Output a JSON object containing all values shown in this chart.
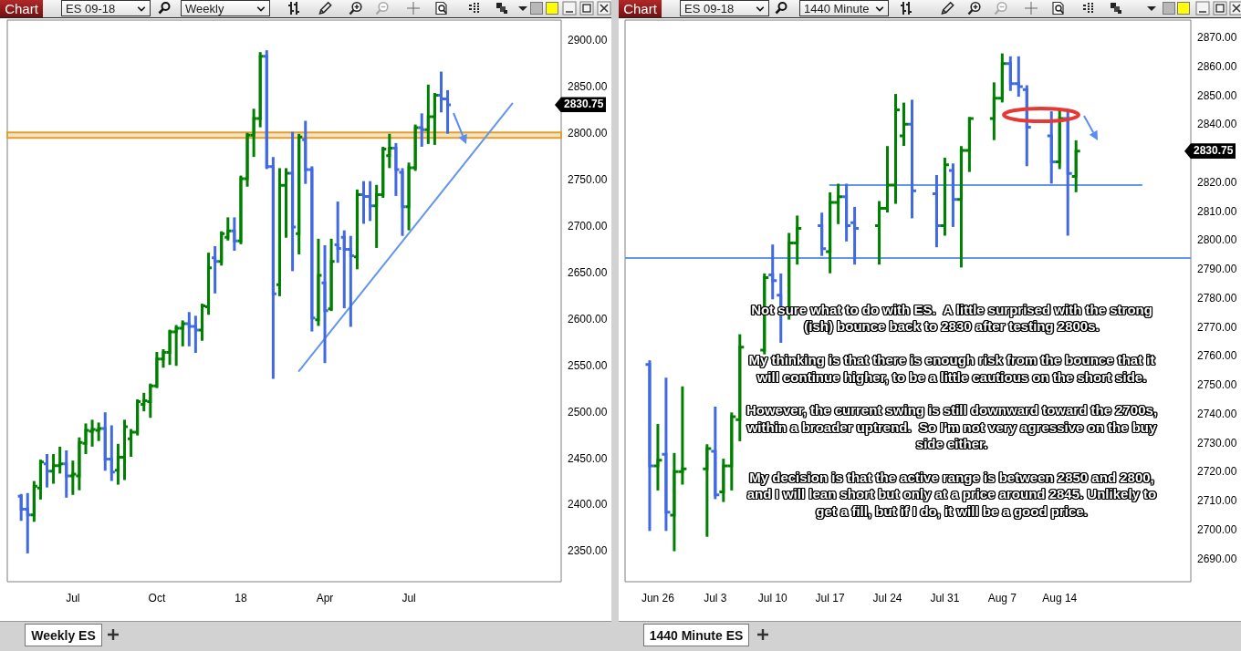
{
  "chart_data": [
    {
      "type": "candlestick",
      "title": "Weekly ES",
      "subtitle": "Weekly",
      "annotations": [
        "Chart",
        "ES 09-18",
        "2830.75"
      ],
      "x": [
        "2017-05-08",
        "2017-05-15",
        "2017-05-22",
        "2017-05-29",
        "2017-06-05",
        "2017-06-12",
        "2017-06-19",
        "2017-06-26",
        "2017-07-03",
        "2017-07-10",
        "2017-07-17",
        "2017-07-24",
        "2017-07-31",
        "2017-08-07",
        "2017-08-14",
        "2017-08-21",
        "2017-08-28",
        "2017-09-04",
        "2017-09-11",
        "2017-09-18",
        "2017-09-25",
        "2017-10-02",
        "2017-10-09",
        "2017-10-16",
        "2017-10-23",
        "2017-10-30",
        "2017-11-06",
        "2017-11-13",
        "2017-11-20",
        "2017-11-27",
        "2017-12-04",
        "2017-12-11",
        "2017-12-18",
        "2017-12-25",
        "2018-01-01",
        "2018-01-08",
        "2018-01-15",
        "2018-01-22",
        "2018-01-29",
        "2018-02-05",
        "2018-02-12",
        "2018-02-19",
        "2018-02-26",
        "2018-03-05",
        "2018-03-12",
        "2018-03-19",
        "2018-03-26",
        "2018-04-02",
        "2018-04-09",
        "2018-04-16",
        "2018-04-23",
        "2018-04-30",
        "2018-05-07",
        "2018-05-14",
        "2018-05-21",
        "2018-05-28",
        "2018-06-04",
        "2018-06-11",
        "2018-06-18",
        "2018-06-25",
        "2018-07-02",
        "2018-07-09",
        "2018-07-16",
        "2018-07-23",
        "2018-07-30",
        "2018-08-06",
        "2018-08-13"
      ],
      "ohlc": [
        [
          2409,
          2410,
          2384,
          2395
        ],
        [
          2395,
          2411,
          2349,
          2389
        ],
        [
          2389,
          2424,
          2383,
          2420
        ],
        [
          2418,
          2447,
          2407,
          2446
        ],
        [
          2444,
          2453,
          2420,
          2436
        ],
        [
          2436,
          2453,
          2424,
          2442
        ],
        [
          2442,
          2461,
          2435,
          2444
        ],
        [
          2444,
          2457,
          2409,
          2431
        ],
        [
          2431,
          2446,
          2412,
          2433
        ],
        [
          2431,
          2471,
          2417,
          2467
        ],
        [
          2466,
          2486,
          2456,
          2480
        ],
        [
          2479,
          2490,
          2464,
          2481
        ],
        [
          2480,
          2487,
          2470,
          2482
        ],
        [
          2482,
          2498,
          2438,
          2449
        ],
        [
          2449,
          2484,
          2427,
          2435
        ],
        [
          2437,
          2464,
          2423,
          2451
        ],
        [
          2451,
          2490,
          2428,
          2484
        ],
        [
          2471,
          2480,
          2453,
          2478
        ],
        [
          2478,
          2512,
          2476,
          2511
        ],
        [
          2508,
          2519,
          2502,
          2512
        ],
        [
          2511,
          2529,
          2495,
          2528
        ],
        [
          2528,
          2563,
          2527,
          2557
        ],
        [
          2557,
          2566,
          2549,
          2564
        ],
        [
          2564,
          2587,
          2552,
          2586
        ],
        [
          2586,
          2592,
          2551,
          2590
        ],
        [
          2590,
          2597,
          2572,
          2595
        ],
        [
          2595,
          2606,
          2572,
          2592
        ],
        [
          2592,
          2602,
          2565,
          2588
        ],
        [
          2588,
          2615,
          2578,
          2614
        ],
        [
          2613,
          2670,
          2606,
          2655
        ],
        [
          2666,
          2677,
          2629,
          2662
        ],
        [
          2662,
          2693,
          2659,
          2692
        ],
        [
          2688,
          2708,
          2686,
          2695
        ],
        [
          2695,
          2708,
          2675,
          2684
        ],
        [
          2684,
          2753,
          2682,
          2751
        ],
        [
          2751,
          2799,
          2744,
          2798
        ],
        [
          2798,
          2825,
          2776,
          2816
        ],
        [
          2816,
          2886,
          2808,
          2883
        ],
        [
          2883,
          2888,
          2763,
          2764
        ],
        [
          2764,
          2773,
          2537,
          2627
        ],
        [
          2637,
          2761,
          2626,
          2744
        ],
        [
          2744,
          2761,
          2689,
          2757
        ],
        [
          2757,
          2800,
          2653,
          2699
        ],
        [
          2692,
          2798,
          2671,
          2796
        ],
        [
          2793,
          2812,
          2747,
          2761
        ],
        [
          2761,
          2763,
          2588,
          2601
        ],
        [
          2599,
          2685,
          2594,
          2647
        ],
        [
          2639,
          2678,
          2554,
          2609
        ],
        [
          2611,
          2685,
          2610,
          2662
        ],
        [
          2680,
          2725,
          2662,
          2676
        ],
        [
          2688,
          2694,
          2613,
          2675
        ],
        [
          2675,
          2688,
          2593,
          2668
        ],
        [
          2667,
          2738,
          2655,
          2734
        ],
        [
          2734,
          2747,
          2704,
          2732
        ],
        [
          2732,
          2747,
          2707,
          2722
        ],
        [
          2722,
          2743,
          2678,
          2734
        ],
        [
          2734,
          2784,
          2732,
          2783
        ],
        [
          2776,
          2798,
          2764,
          2784
        ],
        [
          2784,
          2788,
          2734,
          2761
        ],
        [
          2758,
          2761,
          2691,
          2721
        ],
        [
          2721,
          2767,
          2697,
          2763
        ],
        [
          2763,
          2808,
          2761,
          2806
        ],
        [
          2806,
          2820,
          2787,
          2804
        ],
        [
          2804,
          2851,
          2790,
          2818
        ],
        [
          2818,
          2842,
          2789,
          2841
        ],
        [
          2841,
          2865,
          2824,
          2837
        ],
        [
          2837,
          2845,
          2801,
          2830.75
        ]
      ],
      "colors": [
        "#4169e1",
        "#4169e1",
        "#008000",
        "#008000",
        "#4169e1",
        "#008000",
        "#008000",
        "#4169e1",
        "#008000",
        "#008000",
        "#008000",
        "#008000",
        "#008000",
        "#4169e1",
        "#4169e1",
        "#008000",
        "#008000",
        "#008000",
        "#008000",
        "#008000",
        "#008000",
        "#008000",
        "#008000",
        "#008000",
        "#008000",
        "#008000",
        "#4169e1",
        "#4169e1",
        "#008000",
        "#008000",
        "#4169e1",
        "#008000",
        "#008000",
        "#4169e1",
        "#008000",
        "#008000",
        "#008000",
        "#008000",
        "#4169e1",
        "#4169e1",
        "#008000",
        "#008000",
        "#4169e1",
        "#008000",
        "#4169e1",
        "#4169e1",
        "#008000",
        "#4169e1",
        "#008000",
        "#4169e1",
        "#4169e1",
        "#4169e1",
        "#008000",
        "#4169e1",
        "#4169e1",
        "#008000",
        "#008000",
        "#008000",
        "#4169e1",
        "#4169e1",
        "#008000",
        "#008000",
        "#4169e1",
        "#008000",
        "#008000",
        "#4169e1",
        "#4169e1"
      ],
      "series": [
        {
          "type": "line",
          "x": [
            "2018-03-05",
            "2018-10-22"
          ],
          "values": [
            2544,
            2832
          ],
          "color": "#6495ed"
        }
      ],
      "bands": [
        {
          "axis": "y",
          "from": 2795,
          "to": 2801,
          "color": "#e0a030"
        }
      ],
      "xlim": [
        "2017-04-23",
        "2018-12-14"
      ],
      "xticks": [
        {
          "value": "2017-07-03",
          "label": "Jul"
        },
        {
          "value": "2017-10-02",
          "label": "Oct"
        },
        {
          "value": "2018-01-01",
          "label": "18"
        },
        {
          "value": "2018-04-02",
          "label": "Apr"
        },
        {
          "value": "2018-07-02",
          "label": "Jul"
        }
      ],
      "ylim": [
        2317,
        2922
      ],
      "yticks": [
        {
          "value": 2350,
          "label": "2350.00"
        },
        {
          "value": 2400,
          "label": "2400.00"
        },
        {
          "value": 2450,
          "label": "2450.00"
        },
        {
          "value": 2500,
          "label": "2500.00"
        },
        {
          "value": 2550,
          "label": "2550.00"
        },
        {
          "value": 2600,
          "label": "2600.00"
        },
        {
          "value": 2650,
          "label": "2650.00"
        },
        {
          "value": 2700,
          "label": "2700.00"
        },
        {
          "value": 2750,
          "label": "2750.00"
        },
        {
          "value": 2800,
          "label": "2800.00"
        },
        {
          "value": 2850,
          "label": "2850.00"
        },
        {
          "value": 2900,
          "label": "2900.00"
        }
      ]
    },
    {
      "type": "candlestick",
      "title": "1440 Minute ES",
      "subtitle": "1440 Minute",
      "annotations": [
        "Chart",
        "ES 09-18",
        "2830.75",
        "Not sure what to do with ES.  A little surprised with the strong\n(ish) bounce back to 2830 after testing 2800s.\n\nMy thinking is that there is enough risk from the bounce that it\nwill continue higher, to be a little cautious on the short side.\n\nHowever, the current swing is still downward toward the 2700s,\nwithin a broader uptrend.  So I'm not very agressive on the buy\nside either.\n\nMy decision is that the active range is between 2850 and 2800,\nand I will lean short but only at a price around 2845. Unlikely to\nget a fill, but if I do, it will be a good price."
      ],
      "x": [
        "--06-25",
        "--06-26",
        "--06-27",
        "--06-28",
        "--06-29",
        "--07-02",
        "--07-03",
        "--07-04",
        "--07-05",
        "--07-06",
        "--07-09",
        "--07-10",
        "--07-11",
        "--07-12",
        "--07-13",
        "--07-16",
        "--07-17",
        "--07-18",
        "--07-19",
        "--07-20",
        "--07-23",
        "--07-24",
        "--07-25",
        "--07-26",
        "--07-27",
        "--07-30",
        "--07-31",
        "--08-01",
        "--08-02",
        "--08-03",
        "--08-06",
        "--08-07",
        "--08-08",
        "--08-09",
        "--08-10",
        "--08-13",
        "--08-14",
        "--08-15",
        "--08-16"
      ],
      "ohlc": [
        [
          2757,
          2758,
          2700,
          2722
        ],
        [
          2722,
          2736,
          2714,
          2724
        ],
        [
          2726,
          2752,
          2700,
          2706
        ],
        [
          2705,
          2726,
          2693,
          2720
        ],
        [
          2720,
          2749,
          2716,
          2721
        ],
        [
          2721,
          2729,
          2698,
          2728
        ],
        [
          2727,
          2742,
          2711,
          2712
        ],
        [
          2713,
          2724,
          2710,
          2722
        ],
        [
          2722,
          2740,
          2714,
          2739
        ],
        [
          2738,
          2767,
          2731,
          2763
        ],
        [
          2762,
          2788,
          2761,
          2787
        ],
        [
          2788,
          2798,
          2780,
          2786
        ],
        [
          2781,
          2788,
          2765,
          2775
        ],
        [
          2775,
          2802,
          2773,
          2799
        ],
        [
          2799,
          2808,
          2792,
          2804
        ],
        [
          2805,
          2809,
          2795,
          2797
        ],
        [
          2796,
          2816,
          2789,
          2813
        ],
        [
          2813,
          2819,
          2806,
          2815
        ],
        [
          2815,
          2819,
          2800,
          2805
        ],
        [
          2806,
          2811,
          2792,
          2804
        ],
        [
          2805,
          2813,
          2792,
          2811
        ],
        [
          2811,
          2832,
          2810,
          2819
        ],
        [
          2819,
          2850,
          2813,
          2845
        ],
        [
          2836,
          2847,
          2833,
          2840
        ],
        [
          2840,
          2848,
          2808,
          2817
        ],
        [
          2816,
          2822,
          2798,
          2805
        ],
        [
          2805,
          2828,
          2802,
          2826
        ],
        [
          2824,
          2826,
          2805,
          2814
        ],
        [
          2814,
          2832,
          2791,
          2831
        ],
        [
          2831,
          2842,
          2824,
          2842
        ],
        [
          2842,
          2854,
          2835,
          2849
        ],
        [
          2849,
          2864,
          2848,
          2861
        ],
        [
          2861,
          2863,
          2852,
          2854
        ],
        [
          2854,
          2863,
          2850,
          2853
        ],
        [
          2852,
          2853,
          2826,
          2839
        ],
        [
          2836,
          2844,
          2820,
          2827
        ],
        [
          2827,
          2845,
          2825,
          2842
        ],
        [
          2842,
          2844,
          2802,
          2823
        ],
        [
          2822,
          2834,
          2817,
          2830.75
        ]
      ],
      "colors": [
        "#4169e1",
        "#008000",
        "#4169e1",
        "#008000",
        "#008000",
        "#008000",
        "#4169e1",
        "#008000",
        "#008000",
        "#008000",
        "#008000",
        "#4169e1",
        "#4169e1",
        "#008000",
        "#008000",
        "#4169e1",
        "#008000",
        "#008000",
        "#4169e1",
        "#4169e1",
        "#008000",
        "#008000",
        "#008000",
        "#008000",
        "#4169e1",
        "#4169e1",
        "#008000",
        "#4169e1",
        "#008000",
        "#008000",
        "#008000",
        "#008000",
        "#4169e1",
        "#4169e1",
        "#4169e1",
        "#4169e1",
        "#008000",
        "#4169e1",
        "#008000"
      ],
      "series": [
        {
          "type": "line",
          "x": [
            "--07-17",
            "--08-24"
          ],
          "values": [
            2819,
            2819
          ],
          "color": "#6495ed"
        }
      ],
      "ref_lines": [
        {
          "axis": "y",
          "value": 2794,
          "color": "#6495ed"
        }
      ],
      "xlim": [
        "--06-22",
        "--08-30"
      ],
      "xticks": [
        {
          "value": "--06-26",
          "label": "Jun 26"
        },
        {
          "value": "--07-03",
          "label": "Jul 3"
        },
        {
          "value": "--07-10",
          "label": "Jul 10"
        },
        {
          "value": "--07-17",
          "label": "Jul 17"
        },
        {
          "value": "--07-24",
          "label": "Jul 24"
        },
        {
          "value": "--07-31",
          "label": "Jul 31"
        },
        {
          "value": "--08-07",
          "label": "Aug 7"
        },
        {
          "value": "--08-14",
          "label": "Aug 14"
        }
      ],
      "ylim": [
        2682,
        2876
      ],
      "yticks": [
        {
          "value": 2690,
          "label": "2690.00"
        },
        {
          "value": 2700,
          "label": "2700.00"
        },
        {
          "value": 2710,
          "label": "2710.00"
        },
        {
          "value": 2720,
          "label": "2720.00"
        },
        {
          "value": 2730,
          "label": "2730.00"
        },
        {
          "value": 2740,
          "label": "2740.00"
        },
        {
          "value": 2750,
          "label": "2750.00"
        },
        {
          "value": 2760,
          "label": "2760.00"
        },
        {
          "value": 2770,
          "label": "2770.00"
        },
        {
          "value": 2780,
          "label": "2780.00"
        },
        {
          "value": 2790,
          "label": "2790.00"
        },
        {
          "value": 2800,
          "label": "2800.00"
        },
        {
          "value": 2810,
          "label": "2810.00"
        },
        {
          "value": 2820,
          "label": "2820.00"
        },
        {
          "value": 2840,
          "label": "2840.00"
        },
        {
          "value": 2850,
          "label": "2850.00"
        },
        {
          "value": 2860,
          "label": "2860.00"
        },
        {
          "value": 2870,
          "label": "2870.00"
        }
      ]
    }
  ]
}
